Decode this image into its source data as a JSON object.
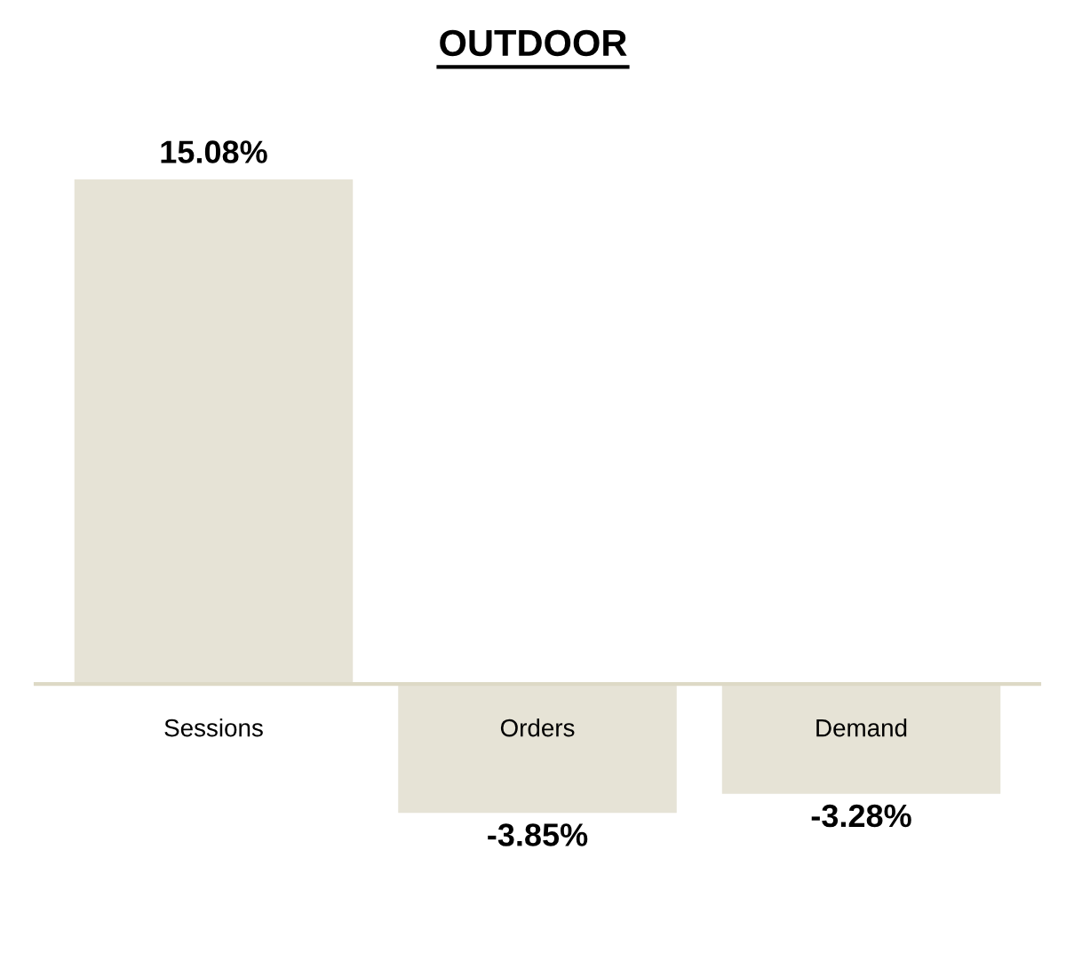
{
  "chart_data": {
    "type": "bar",
    "title": "OUTDOOR",
    "categories": [
      "Sessions",
      "Orders",
      "Demand"
    ],
    "values": [
      15.08,
      -3.85,
      -3.28
    ],
    "value_labels": [
      "15.08%",
      "-3.85%",
      "-3.28%"
    ],
    "color": "#e6e3d6",
    "tick_labels": "x"
  }
}
